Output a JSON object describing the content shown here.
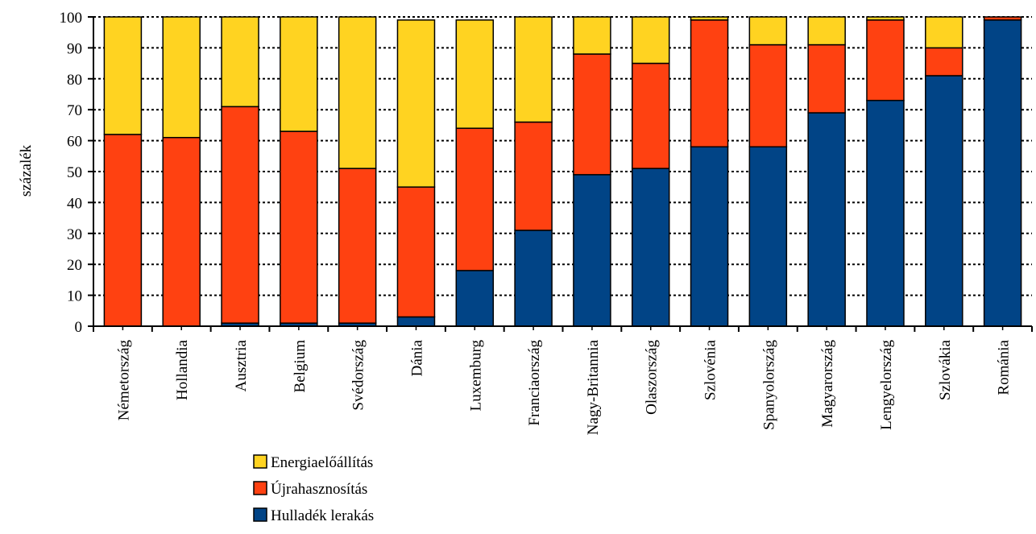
{
  "chart_data": {
    "type": "bar",
    "stacked": true,
    "title": "",
    "xlabel": "",
    "ylabel": "százalék",
    "ylim": [
      0,
      100
    ],
    "yticks": [
      0,
      10,
      20,
      30,
      40,
      50,
      60,
      70,
      80,
      90,
      100
    ],
    "grid": true,
    "legend_position": "bottom-left",
    "categories": [
      "Németország",
      "Hollandia",
      "Ausztria",
      "Belgium",
      "Svédország",
      "Dánia",
      "Luxemburg",
      "Franciaország",
      "Nagy-Britannia",
      "Olaszország",
      "Szlovénia",
      "Spanyolország",
      "Magyarország",
      "Lengyelország",
      "Szlovákia",
      "Románia"
    ],
    "series": [
      {
        "name": "Hulladék lerakás",
        "color": "#014486",
        "values": [
          0,
          0,
          1,
          1,
          1,
          3,
          18,
          31,
          49,
          51,
          58,
          58,
          69,
          73,
          81,
          99
        ]
      },
      {
        "name": "Újrahasznosítás",
        "color": "#FF4111",
        "values": [
          62,
          61,
          70,
          62,
          50,
          42,
          46,
          35,
          39,
          34,
          41,
          33,
          22,
          26,
          9,
          1
        ]
      },
      {
        "name": "Energiaelőállítás",
        "color": "#FFD321",
        "values": [
          38,
          39,
          29,
          37,
          49,
          54,
          35,
          34,
          12,
          15,
          1,
          9,
          9,
          1,
          10,
          0
        ]
      }
    ],
    "legend_order": [
      "Energiaelőállítás",
      "Újrahasznosítás",
      "Hulladék lerakás"
    ]
  }
}
